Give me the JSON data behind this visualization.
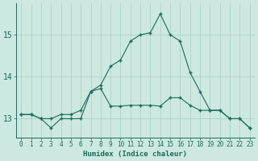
{
  "xlabel": "Humidex (Indice chaleur)",
  "bg_color": "#cce8e0",
  "grid_color": "#a8cec6",
  "line_color": "#1a6b5a",
  "x_ticks": [
    0,
    1,
    2,
    3,
    4,
    5,
    6,
    7,
    8,
    9,
    10,
    11,
    12,
    13,
    14,
    15,
    16,
    17,
    18,
    19,
    20,
    21,
    22,
    23
  ],
  "y_ticks": [
    13,
    14,
    15
  ],
  "ylim": [
    12.55,
    15.75
  ],
  "xlim": [
    -0.5,
    23.5
  ],
  "line1_x": [
    0,
    1,
    2,
    3,
    4,
    5,
    6,
    7,
    8,
    9,
    10,
    11,
    12,
    13,
    14,
    15,
    16,
    17,
    18,
    19,
    20,
    21,
    22,
    23
  ],
  "line1_y": [
    13.1,
    13.1,
    13.0,
    12.78,
    13.0,
    13.0,
    13.0,
    13.65,
    13.72,
    13.3,
    13.3,
    13.32,
    13.32,
    13.32,
    13.3,
    13.5,
    13.5,
    13.32,
    13.2,
    13.2,
    13.2,
    13.0,
    13.0,
    12.78
  ],
  "line2_x": [
    0,
    1,
    2,
    3,
    4,
    5,
    6,
    7,
    8,
    9,
    10,
    11,
    12,
    13,
    14,
    15,
    16,
    17,
    18,
    19,
    20,
    21,
    22,
    23
  ],
  "line2_y": [
    13.1,
    13.1,
    13.0,
    13.0,
    13.1,
    13.1,
    13.2,
    13.65,
    13.8,
    14.25,
    14.4,
    14.85,
    15.0,
    15.05,
    15.5,
    15.0,
    14.85,
    14.1,
    13.65,
    13.2,
    13.2,
    13.0,
    13.0,
    12.78
  ]
}
